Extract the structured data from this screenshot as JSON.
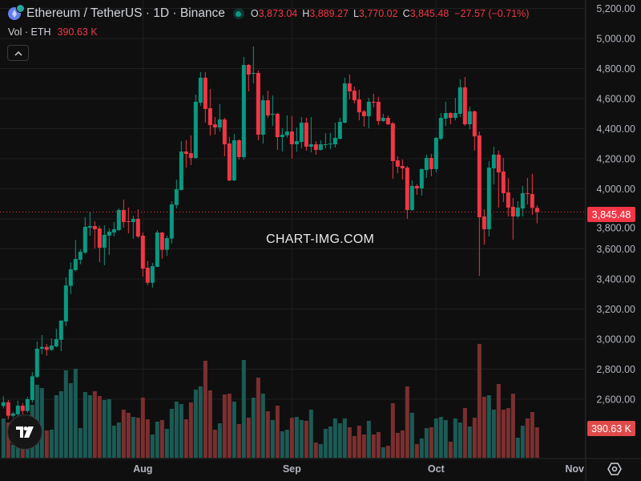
{
  "header": {
    "symbol_icon": "ethereum-icon",
    "title": "Ethereum / TetherUS · 1D · Binance",
    "market_status": "market-open-dot",
    "open_label": "O",
    "open": "3,873.04",
    "high_label": "H",
    "high": "3,889.27",
    "low_label": "L",
    "low": "3,770.02",
    "close_label": "C",
    "close": "3,845.48",
    "change": "−27.57 (−0.71%)"
  },
  "volume_legend": {
    "label": "Vol · ETH",
    "value": "390.63 K"
  },
  "collapse_icon": "chevron-up-icon",
  "watermark": "CHART-IMG.COM",
  "logo": "TV",
  "current_price_label": "3,845.48",
  "current_volume_label": "390.63 K",
  "colors": {
    "up": "#089981",
    "down": "#f23645",
    "vol_up": "#1c5b55",
    "vol_down": "#7c2f2f",
    "background": "#0f0f0f"
  },
  "chart_data": {
    "type": "candlestick",
    "title": "Ethereum / TetherUS · 1D · Binance",
    "x_ticks": [
      "Aug",
      "Sep",
      "Oct",
      "Nov"
    ],
    "y_ticks": [
      "5,200.00",
      "5,000.00",
      "4,800.00",
      "4,600.00",
      "4,400.00",
      "4,200.00",
      "4,000.00",
      "3,800.00",
      "3,600.00",
      "3,400.00",
      "3,200.00",
      "3,000.00",
      "2,800.00",
      "2,600.00"
    ],
    "y_tick_values": [
      5200,
      5000,
      4800,
      4600,
      4400,
      4200,
      4000,
      3800,
      3600,
      3400,
      3200,
      3000,
      2800,
      2600
    ],
    "ylim": [
      2390,
      5270
    ],
    "grid": true,
    "price_scale": "right",
    "columns": [
      "date",
      "open",
      "high",
      "low",
      "close",
      "volume_k"
    ],
    "candles": [
      [
        "Jul 3",
        2555,
        2620,
        2540,
        2580,
        504
      ],
      [
        "Jul 4",
        2580,
        2595,
        2465,
        2490,
        452
      ],
      [
        "Jul 5",
        2490,
        2515,
        2477,
        2505,
        164
      ],
      [
        "Jul 6",
        2500,
        2590,
        2490,
        2557,
        260
      ],
      [
        "Jul 7",
        2557,
        2575,
        2500,
        2522,
        220
      ],
      [
        "Jul 8",
        2522,
        2616,
        2510,
        2600,
        400
      ],
      [
        "Jul 9",
        2595,
        2781,
        2577,
        2753,
        679
      ],
      [
        "Jul 10",
        2749,
        2984,
        2740,
        2936,
        936
      ],
      [
        "Jul 11",
        2936,
        3027,
        2900,
        2948,
        894
      ],
      [
        "Jul 12",
        2948,
        2968,
        2890,
        2929,
        350
      ],
      [
        "Jul 13",
        2929,
        3005,
        2922,
        2957,
        360
      ],
      [
        "Jul 14",
        2952,
        3069,
        2945,
        3000,
        802
      ],
      [
        "Jul 15",
        2995,
        3126,
        2920,
        3123,
        853
      ],
      [
        "Jul 16",
        3117,
        3411,
        3087,
        3357,
        1121
      ],
      [
        "Jul 17",
        3354,
        3510,
        3300,
        3464,
        956
      ],
      [
        "Jul 18",
        3459,
        3660,
        3450,
        3533,
        1141
      ],
      [
        "Jul 19",
        3528,
        3597,
        3498,
        3581,
        380
      ],
      [
        "Jul 20",
        3576,
        3811,
        3565,
        3747,
        843
      ],
      [
        "Jul 21",
        3741,
        3848,
        3688,
        3752,
        802
      ],
      [
        "Jul 22",
        3752,
        3784,
        3603,
        3731,
        853
      ],
      [
        "Jul 23",
        3736,
        3752,
        3512,
        3608,
        792
      ],
      [
        "Jul 24",
        3608,
        3757,
        3491,
        3693,
        740
      ],
      [
        "Jul 25",
        3688,
        3736,
        3560,
        3715,
        751
      ],
      [
        "Jul 26",
        3709,
        3779,
        3683,
        3731,
        411
      ],
      [
        "Jul 27",
        3725,
        3869,
        3720,
        3859,
        452
      ],
      [
        "Jul 28",
        3859,
        3928,
        3741,
        3779,
        617
      ],
      [
        "Jul 29",
        3784,
        3875,
        3704,
        3779,
        576
      ],
      [
        "Jul 30",
        3779,
        3821,
        3667,
        3800,
        524
      ],
      [
        "Jul 31",
        3800,
        3864,
        3672,
        3683,
        514
      ],
      [
        "Aug 1",
        3688,
        3709,
        3416,
        3469,
        771
      ],
      [
        "Aug 2",
        3475,
        3521,
        3359,
        3375,
        493
      ],
      [
        "Aug 3",
        3375,
        3507,
        3343,
        3485,
        298
      ],
      [
        "Aug 4",
        3481,
        3725,
        3478,
        3709,
        463
      ],
      [
        "Aug 5",
        3709,
        3712,
        3535,
        3594,
        483
      ],
      [
        "Aug 6",
        3594,
        3688,
        3553,
        3672,
        370
      ],
      [
        "Aug 7",
        3669,
        3917,
        3636,
        3896,
        627
      ],
      [
        "Aug 8",
        3892,
        4061,
        3869,
        3997,
        720
      ],
      [
        "Aug 9",
        3992,
        4317,
        3989,
        4248,
        689
      ],
      [
        "Aug 10",
        4248,
        4323,
        4141,
        4232,
        493
      ],
      [
        "Aug 11",
        4237,
        4355,
        4157,
        4205,
        709
      ],
      [
        "Aug 12",
        4205,
        4627,
        4200,
        4579,
        874
      ],
      [
        "Aug 13",
        4573,
        4776,
        4552,
        4739,
        915
      ],
      [
        "Aug 14",
        4739,
        4776,
        4440,
        4531,
        1244
      ],
      [
        "Aug 15",
        4536,
        4664,
        4355,
        4424,
        864
      ],
      [
        "Aug 16",
        4429,
        4477,
        4360,
        4408,
        360
      ],
      [
        "Aug 17",
        4408,
        4563,
        4381,
        4461,
        442
      ],
      [
        "Aug 18",
        4461,
        4472,
        4216,
        4296,
        812
      ],
      [
        "Aug 19",
        4301,
        4344,
        4050,
        4056,
        822
      ],
      [
        "Aug 20",
        4056,
        4365,
        4051,
        4323,
        720
      ],
      [
        "Aug 21",
        4323,
        4330,
        4195,
        4211,
        432
      ],
      [
        "Aug 22",
        4211,
        4877,
        4195,
        4824,
        1254
      ],
      [
        "Aug 23",
        4824,
        4830,
        4648,
        4760,
        514
      ],
      [
        "Aug 24",
        4765,
        4947,
        4701,
        4771,
        771
      ],
      [
        "Aug 25",
        4771,
        4787,
        4323,
        4360,
        1028
      ],
      [
        "Aug 26",
        4360,
        4621,
        4301,
        4589,
        822
      ],
      [
        "Aug 27",
        4589,
        4653,
        4472,
        4488,
        596
      ],
      [
        "Aug 28",
        4493,
        4621,
        4419,
        4499,
        483
      ],
      [
        "Aug 29",
        4499,
        4505,
        4259,
        4344,
        668
      ],
      [
        "Aug 30",
        4344,
        4403,
        4248,
        4360,
        339
      ],
      [
        "Aug 31",
        4356,
        4488,
        4340,
        4381,
        360
      ],
      [
        "Sep 1",
        4381,
        4483,
        4200,
        4296,
        514
      ],
      [
        "Sep 2",
        4296,
        4408,
        4248,
        4317,
        524
      ],
      [
        "Sep 3",
        4312,
        4477,
        4269,
        4440,
        483
      ],
      [
        "Sep 4",
        4440,
        4472,
        4253,
        4280,
        473
      ],
      [
        "Sep 5",
        4280,
        4477,
        4243,
        4296,
        617
      ],
      [
        "Sep 6",
        4296,
        4317,
        4227,
        4259,
        195
      ],
      [
        "Sep 7",
        4259,
        4323,
        4255,
        4296,
        175
      ],
      [
        "Sep 8",
        4291,
        4371,
        4269,
        4296,
        370
      ],
      [
        "Sep 9",
        4296,
        4371,
        4264,
        4301,
        401
      ],
      [
        "Sep 10",
        4296,
        4440,
        4275,
        4339,
        504
      ],
      [
        "Sep 11",
        4333,
        4472,
        4328,
        4445,
        442
      ],
      [
        "Sep 12",
        4440,
        4739,
        4435,
        4701,
        504
      ],
      [
        "Sep 13",
        4701,
        4760,
        4595,
        4648,
        391
      ],
      [
        "Sep 14",
        4653,
        4680,
        4568,
        4589,
        278
      ],
      [
        "Sep 15",
        4595,
        4659,
        4456,
        4509,
        411
      ],
      [
        "Sep 16",
        4515,
        4525,
        4413,
        4483,
        298
      ],
      [
        "Sep 17",
        4483,
        4605,
        4403,
        4579,
        473
      ],
      [
        "Sep 18",
        4579,
        4632,
        4541,
        4573,
        298
      ],
      [
        "Sep 19",
        4579,
        4611,
        4424,
        4451,
        329
      ],
      [
        "Sep 20",
        4451,
        4499,
        4445,
        4472,
        134
      ],
      [
        "Sep 21",
        4472,
        4488,
        4425,
        4429,
        154
      ],
      [
        "Sep 22",
        4435,
        4445,
        4067,
        4184,
        699
      ],
      [
        "Sep 23",
        4189,
        4216,
        4104,
        4147,
        319
      ],
      [
        "Sep 24",
        4152,
        4195,
        4061,
        4136,
        350
      ],
      [
        "Sep 25",
        4141,
        4152,
        3800,
        3859,
        915
      ],
      [
        "Sep 26",
        3859,
        4056,
        3853,
        4019,
        576
      ],
      [
        "Sep 27",
        4019,
        4029,
        3960,
        4003,
        175
      ],
      [
        "Sep 28",
        4003,
        4135,
        3955,
        4131,
        247
      ],
      [
        "Sep 29",
        4125,
        4227,
        4072,
        4205,
        380
      ],
      [
        "Sep 30",
        4205,
        4232,
        4083,
        4131,
        391
      ],
      [
        "Oct 1",
        4131,
        4344,
        4109,
        4339,
        504
      ],
      [
        "Oct 2",
        4333,
        4504,
        4323,
        4472,
        524
      ],
      [
        "Oct 3",
        4467,
        4579,
        4419,
        4504,
        483
      ],
      [
        "Oct 4",
        4504,
        4509,
        4429,
        4472,
        206
      ],
      [
        "Oct 5",
        4472,
        4605,
        4456,
        4504,
        504
      ],
      [
        "Oct 6",
        4499,
        4728,
        4477,
        4675,
        452
      ],
      [
        "Oct 7",
        4675,
        4744,
        4419,
        4429,
        637
      ],
      [
        "Oct 8",
        4429,
        4547,
        4397,
        4515,
        401
      ],
      [
        "Oct 9",
        4515,
        4520,
        4253,
        4349,
        514
      ],
      [
        "Oct 10",
        4355,
        4381,
        3421,
        3811,
        1460
      ],
      [
        "Oct 11",
        3816,
        3864,
        3629,
        3731,
        781
      ],
      [
        "Oct 12",
        3731,
        4184,
        3683,
        4141,
        802
      ],
      [
        "Oct 13",
        4136,
        4280,
        4029,
        4227,
        617
      ],
      [
        "Oct 14",
        4227,
        4253,
        3875,
        4109,
        946
      ],
      [
        "Oct 15",
        4115,
        4205,
        3912,
        3971,
        617
      ],
      [
        "Oct 16",
        3976,
        4072,
        3816,
        3875,
        637
      ],
      [
        "Oct 17",
        3880,
        3939,
        3661,
        3816,
        822
      ],
      [
        "Oct 18",
        3816,
        3917,
        3805,
        3875,
        257
      ],
      [
        "Oct 19",
        3869,
        4019,
        3816,
        3971,
        411
      ],
      [
        "Oct 20",
        3971,
        4072,
        3896,
        3965,
        504
      ],
      [
        "Oct 21",
        3965,
        4099,
        3827,
        3873,
        586
      ],
      [
        "Oct 22",
        3873.04,
        3889.27,
        3770.02,
        3845.48,
        390.63
      ]
    ],
    "last_price": 3845.48
  }
}
